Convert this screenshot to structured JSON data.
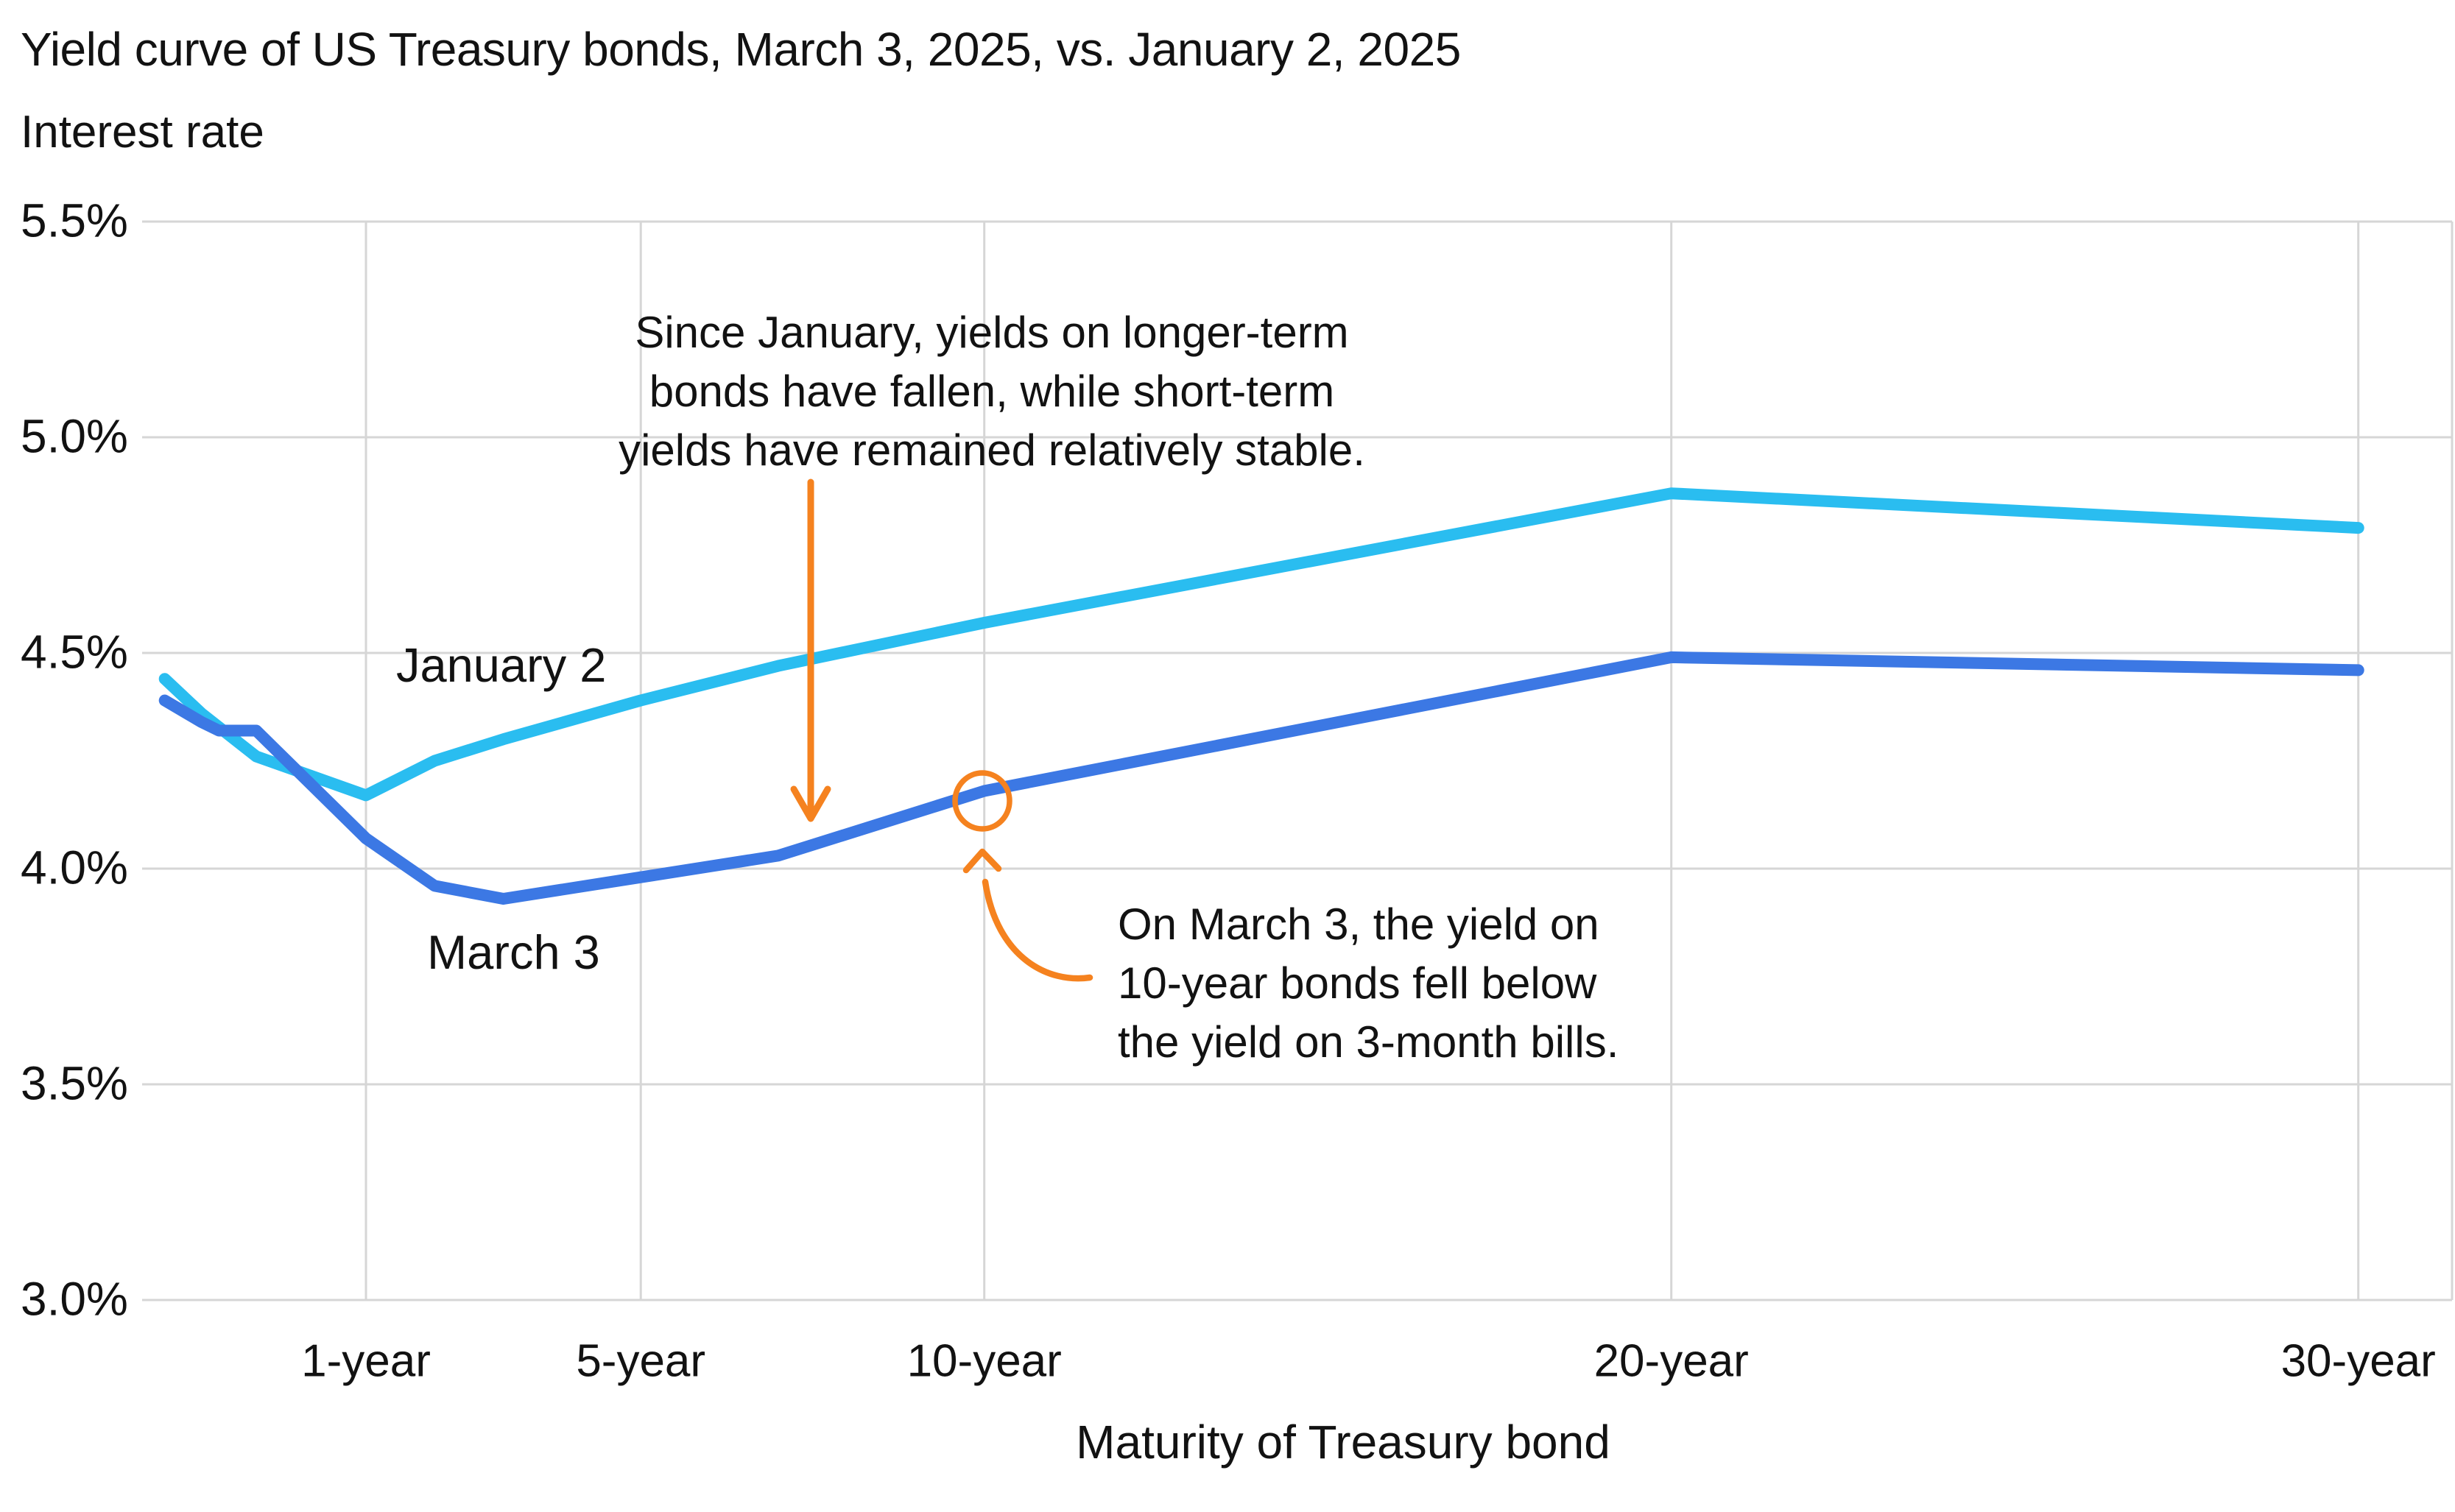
{
  "header": {
    "title": "Yield curve of US Treasury bonds, March 3, 2025, vs. January 2, 2025",
    "subtitle": "Interest rate"
  },
  "chart_data": {
    "type": "line",
    "title": "Yield curve of US Treasury bonds, March 3, 2025, vs. January 2, 2025",
    "ylabel": "Interest rate",
    "xlabel": "Maturity of Treasury bond",
    "ylim": [
      3.0,
      5.5
    ],
    "grid": true,
    "legend_position": "inline-labels-on-lines",
    "x_axis_note": "maturity axis: months region compressed left of 1-year, then linear in years",
    "y_ticks": [
      {
        "label": "5.5%",
        "value": 5.5
      },
      {
        "label": "5.0%",
        "value": 5.0
      },
      {
        "label": "4.5%",
        "value": 4.5
      },
      {
        "label": "4.0%",
        "value": 4.0
      },
      {
        "label": "3.5%",
        "value": 3.5
      },
      {
        "label": "3.0%",
        "value": 3.0
      }
    ],
    "x_ticks": [
      {
        "label": "1-year",
        "years": 1
      },
      {
        "label": "5-year",
        "years": 5
      },
      {
        "label": "10-year",
        "years": 10
      },
      {
        "label": "20-year",
        "years": 20
      },
      {
        "label": "30-year",
        "years": 30
      }
    ],
    "series": [
      {
        "name": "January 2",
        "color": "#2abdf0",
        "points_maturity_years_vs_rate_pct": [
          [
            0.083,
            4.44
          ],
          [
            0.25,
            4.36
          ],
          [
            0.5,
            4.26
          ],
          [
            1,
            4.17
          ],
          [
            2,
            4.25
          ],
          [
            3,
            4.3
          ],
          [
            5,
            4.39
          ],
          [
            7,
            4.47
          ],
          [
            10,
            4.57
          ],
          [
            20,
            4.87
          ],
          [
            30,
            4.79
          ]
        ]
      },
      {
        "name": "March 3",
        "color": "#3c78e4",
        "points_maturity_years_vs_rate_pct": [
          [
            0.083,
            4.39
          ],
          [
            0.25,
            4.34
          ],
          [
            0.33,
            4.32
          ],
          [
            0.5,
            4.32
          ],
          [
            1,
            4.07
          ],
          [
            2,
            3.96
          ],
          [
            3,
            3.93
          ],
          [
            5,
            3.98
          ],
          [
            7,
            4.03
          ],
          [
            10,
            4.18
          ],
          [
            20,
            4.49
          ],
          [
            30,
            4.46
          ]
        ]
      }
    ],
    "annotations": [
      {
        "id": "since-january",
        "lines": [
          "Since January, yields on longer-term",
          "bonds have fallen, while short-term",
          "yields have remained relatively stable."
        ]
      },
      {
        "id": "on-march-3",
        "lines": [
          "On March 3, the yield on",
          "10-year bonds fell below",
          "the yield on 3-month bills."
        ]
      }
    ],
    "annotation_color": "#f5821f",
    "circled_point": {
      "series": "March 3",
      "maturity_years": 10,
      "rate_pct": 4.18
    }
  }
}
